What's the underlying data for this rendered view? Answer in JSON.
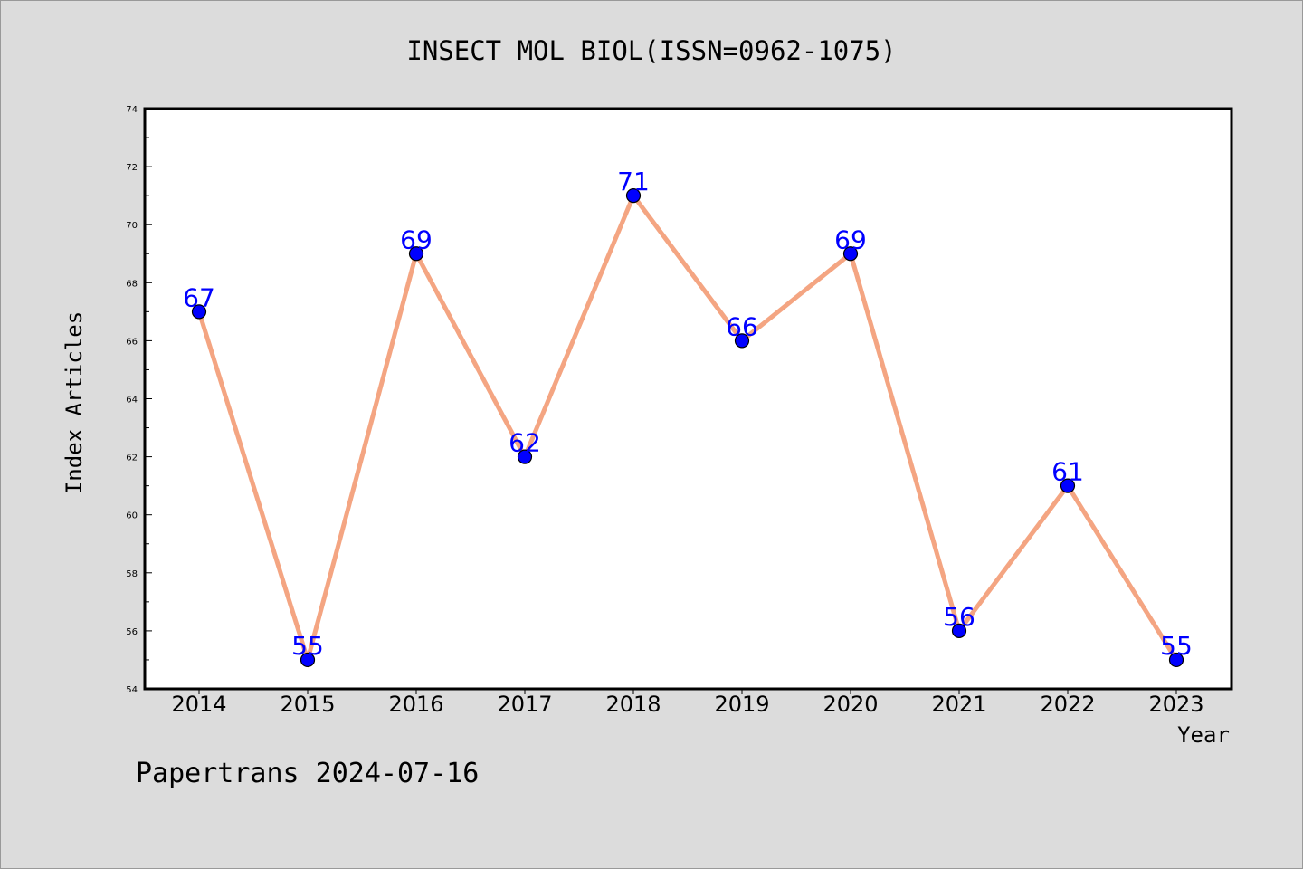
{
  "chart_data": {
    "type": "line",
    "title": "INSECT MOL BIOL(ISSN=0962-1075)",
    "xlabel": "Year",
    "ylabel": "Index Articles",
    "categories": [
      "2014",
      "2015",
      "2016",
      "2017",
      "2018",
      "2019",
      "2020",
      "2021",
      "2022",
      "2023"
    ],
    "series": [
      {
        "values": [
          67,
          55,
          69,
          62,
          71,
          66,
          69,
          56,
          61,
          55
        ]
      }
    ],
    "ylim": [
      54,
      74
    ],
    "yticks": [
      "54",
      "56",
      "58",
      "60",
      "62",
      "64",
      "66",
      "68",
      "70",
      "72",
      "74"
    ],
    "grid": false,
    "colors": {
      "line": "#f4a582",
      "marker": "#0000ff",
      "data_label": "#0000ff",
      "background": "#dcdcdc",
      "plot_area": "#ffffff"
    }
  },
  "footer": {
    "watermark": "Papertrans 2024-07-16"
  }
}
